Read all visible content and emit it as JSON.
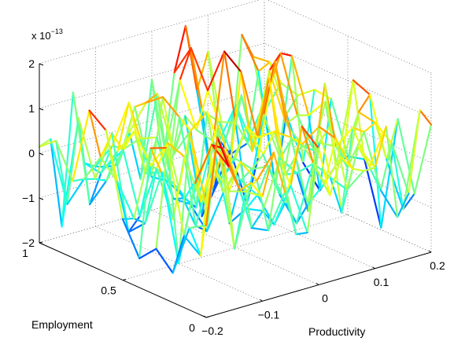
{
  "chart_data": {
    "type": "surface3d-mesh",
    "title": "",
    "xlabel": "Productivity",
    "ylabel": "Employment",
    "zlabel": "",
    "z_exponent_label": "x 10",
    "z_exponent_power": "−13",
    "xlim": [
      -0.2,
      0.2
    ],
    "ylim": [
      0,
      1
    ],
    "zlim": [
      -2,
      2
    ],
    "x_ticks": [
      -0.2,
      -0.1,
      0,
      0.1,
      0.2
    ],
    "x_tick_labels": [
      "−0.2",
      "−0.1",
      "0",
      "0.1",
      "0.2"
    ],
    "y_ticks": [
      0,
      0.5,
      1
    ],
    "y_tick_labels": [
      "0",
      "0.5",
      "1"
    ],
    "z_ticks": [
      -2,
      -1,
      0,
      1,
      2
    ],
    "z_tick_labels": [
      "−2",
      "−1",
      "0",
      "1",
      "2"
    ],
    "grid": true,
    "colormap": "jet",
    "note_values_in_units_of_1e-13": true,
    "x_grid": [
      -0.2,
      -0.18,
      -0.16,
      -0.14,
      -0.12,
      -0.1,
      -0.08,
      -0.06,
      -0.04,
      -0.02,
      0,
      0.02,
      0.04,
      0.06,
      0.08,
      0.1,
      0.12,
      0.14,
      0.16,
      0.18,
      0.2
    ],
    "y_grid": [
      0,
      0.1,
      0.2,
      0.3,
      0.4,
      0.5,
      0.6,
      0.7,
      0.8,
      0.9,
      1.0
    ]
  }
}
